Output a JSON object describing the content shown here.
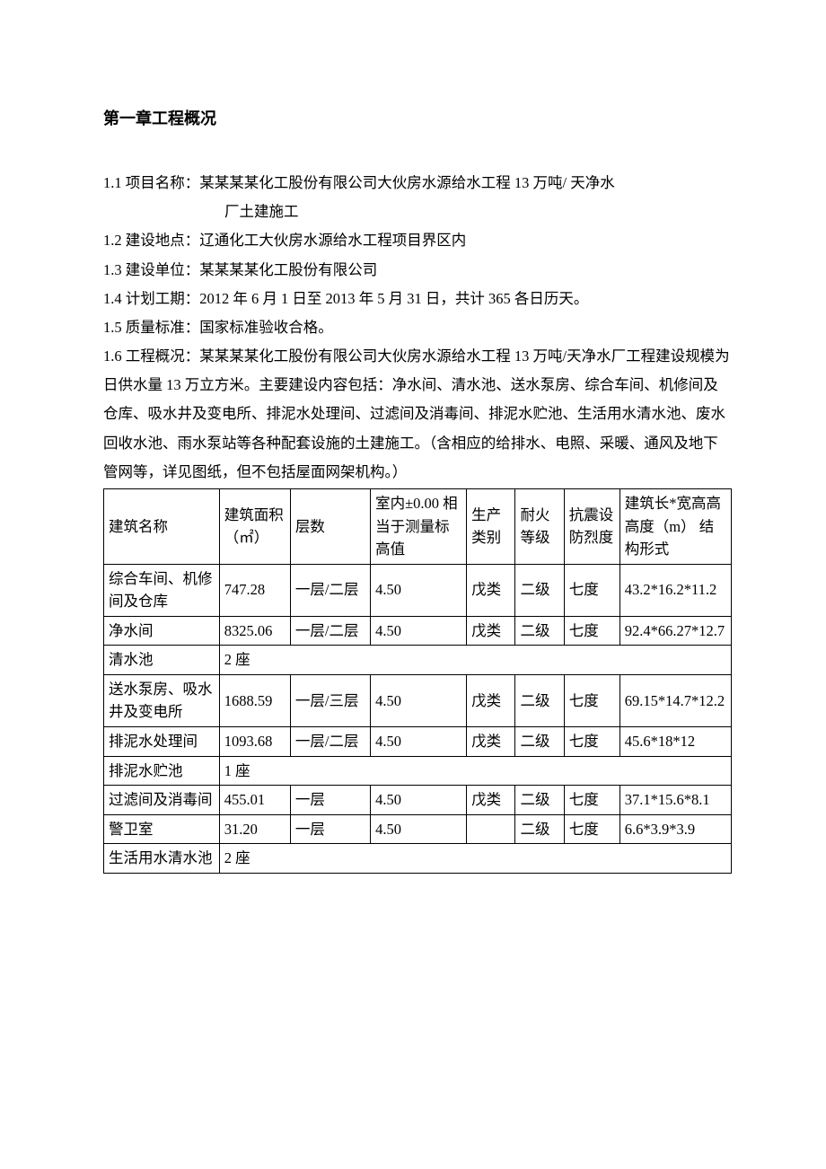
{
  "header": {
    "chapter_title": "第一章工程概况"
  },
  "items": {
    "i1_label": "1.1 项目名称：",
    "i1_text": "某某某某化工股份有限公司大伙房水源给水工程 13 万吨/ 天净水",
    "i1_cont": "厂土建施工",
    "i2": "1.2 建设地点：辽通化工大伙房水源给水工程项目界区内",
    "i3": "1.3 建设单位：某某某某化工股份有限公司",
    "i4": "1.4 计划工期：2012 年 6 月 1 日至 2013 年 5 月 31 日，共计 365 各日历天。",
    "i5": "1.5 质量标准：国家标准验收合格。",
    "i6": "1.6 工程概况：某某某某化工股份有限公司大伙房水源给水工程 13 万吨/天净水厂工程建设规模为日供水量 13 万立方米。主要建设内容包括：净水间、清水池、送水泵房、综合车间、机修间及仓库、吸水井及变电所、排泥水处理间、过滤间及消毒间、排泥水贮池、生活用水清水池、废水回收水池、雨水泵站等各种配套设施的土建施工。（含相应的给排水、电照、采暖、通风及地下管网等，详见图纸，但不包括屋面网架机构。）"
  },
  "table": {
    "headers": {
      "h0": "建筑名称",
      "h1": "建筑面积（㎡）",
      "h2": "层数",
      "h3": "室内±0.00 相当于测量标高值",
      "h4": "生产类别",
      "h5": "耐火等级",
      "h6": "抗震设防烈度",
      "h7": "建筑长*宽高高高度（m）\n结构形式"
    },
    "rows": [
      {
        "c0": "综合车间、机修间及仓库",
        "c1": "747.28",
        "c2": "一层/二层",
        "c3": "4.50",
        "c4": "戊类",
        "c5": "二级",
        "c6": "七度",
        "c7": "43.2*16.2*11.2"
      },
      {
        "c0": "净水间",
        "c1": "8325.06",
        "c2": "一层/二层",
        "c3": "4.50",
        "c4": "戊类",
        "c5": "二级",
        "c6": "七度",
        "c7": "92.4*66.27*12.7"
      },
      {
        "c0": "清水池",
        "span": "2 座"
      },
      {
        "c0": "送水泵房、吸水井及变电所",
        "c1": "1688.59",
        "c2": "一层/三层",
        "c3": "4.50",
        "c4": "戊类",
        "c5": "二级",
        "c6": "七度",
        "c7": "69.15*14.7*12.2"
      },
      {
        "c0": "排泥水处理间",
        "c1": "1093.68",
        "c2": "一层/二层",
        "c3": "4.50",
        "c4": "戊类",
        "c5": "二级",
        "c6": "七度",
        "c7": "45.6*18*12"
      },
      {
        "c0": "排泥水贮池",
        "span": "1 座"
      },
      {
        "c0": "过滤间及消毒间",
        "c1": "455.01",
        "c2": "一层",
        "c3": "4.50",
        "c4": "戊类",
        "c5": "二级",
        "c6": "七度",
        "c7": "37.1*15.6*8.1"
      },
      {
        "c0": "警卫室",
        "c1": "31.20",
        "c2": "一层",
        "c3": "4.50",
        "c4": "",
        "c5": "二级",
        "c6": "七度",
        "c7": "6.6*3.9*3.9"
      },
      {
        "c0": "生活用水清水池",
        "span": "2 座"
      }
    ]
  },
  "style": {
    "text_color": "#000000",
    "background_color": "#ffffff",
    "border_color": "#000000",
    "body_fontsize": 16.5,
    "title_fontsize": 18,
    "font_family": "SimSun"
  }
}
